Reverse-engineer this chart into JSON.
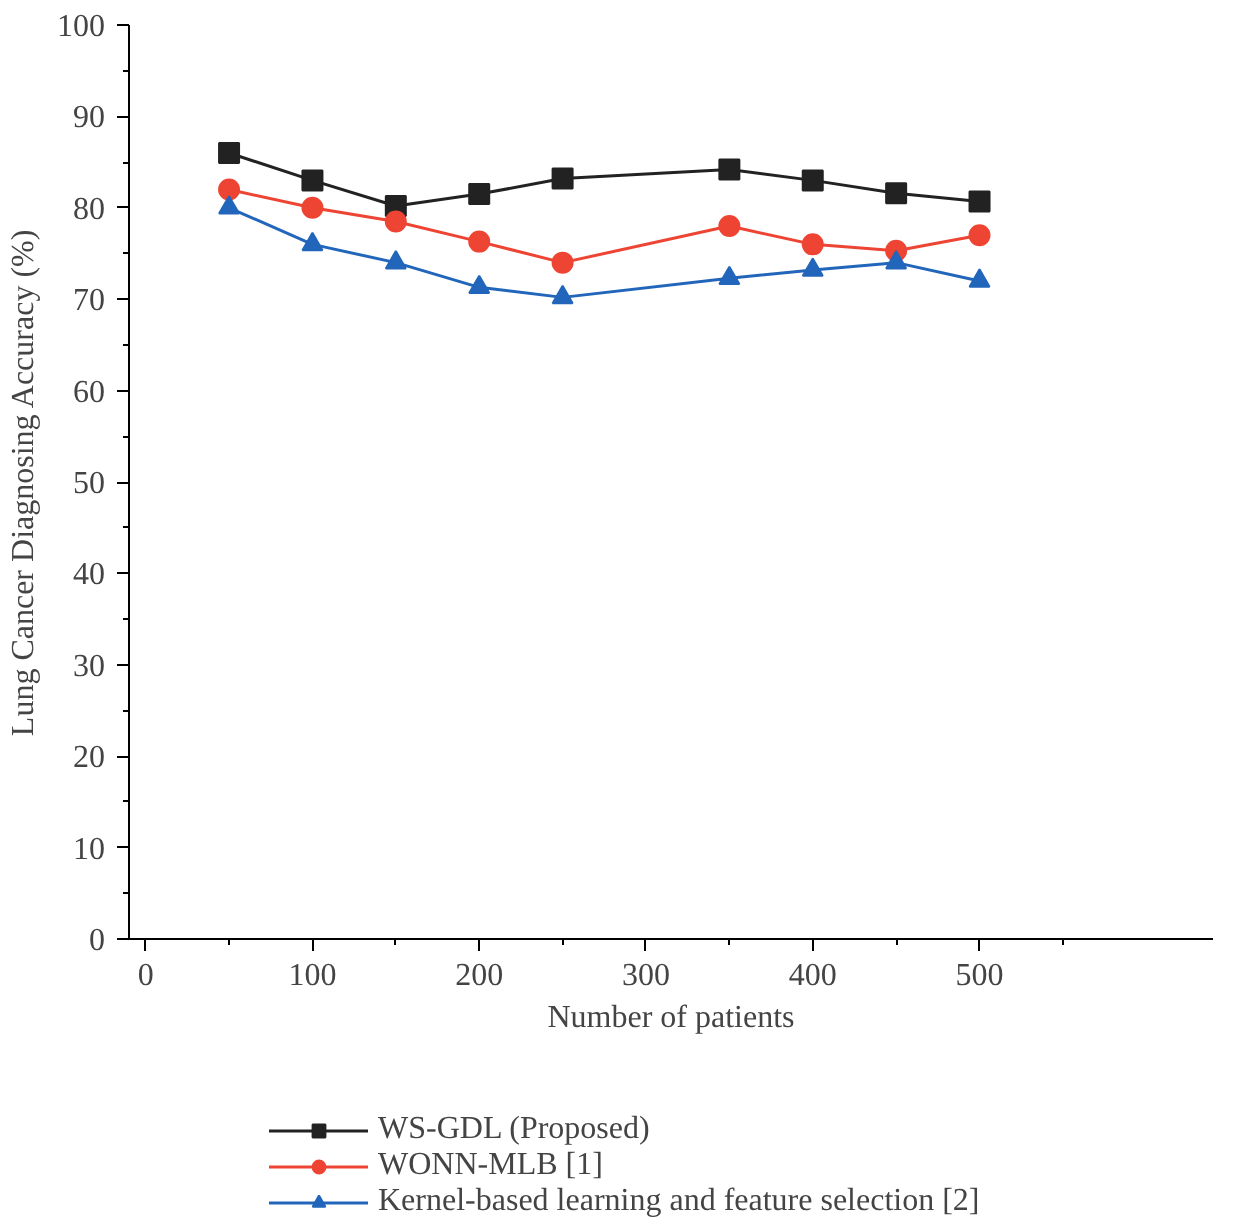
{
  "chart_data": {
    "type": "line",
    "xlabel": "Number of patients",
    "ylabel": "Lung Cancer Diagnosing Accuracy (%)",
    "x": [
      50,
      100,
      150,
      200,
      250,
      350,
      400,
      450,
      500
    ],
    "xlim": [
      -10,
      640
    ],
    "xticks": [
      0,
      100,
      200,
      300,
      400,
      500
    ],
    "ylim": [
      0,
      100
    ],
    "yticks": [
      0,
      10,
      20,
      30,
      40,
      50,
      60,
      70,
      80,
      90,
      100
    ],
    "grid": false,
    "legend": "bottom",
    "line_style": "solid",
    "series": [
      {
        "name": "WS-GDL (Proposed)",
        "color": "#222222",
        "marker": "square",
        "values": [
          86,
          83,
          80.2,
          81.5,
          83.2,
          84.2,
          83,
          81.6,
          80.7
        ]
      },
      {
        "name": "WONN-MLB [1]",
        "color": "#ee4433",
        "marker": "circle",
        "values": [
          82,
          80,
          78.5,
          76.3,
          74,
          78,
          76,
          75.3,
          77
        ]
      },
      {
        "name": "Kernel-based learning and feature selection [2]",
        "color": "#2266bb",
        "marker": "triangle",
        "values": [
          80,
          76,
          74,
          71.3,
          70.2,
          72.3,
          73.2,
          74,
          72
        ]
      }
    ]
  }
}
